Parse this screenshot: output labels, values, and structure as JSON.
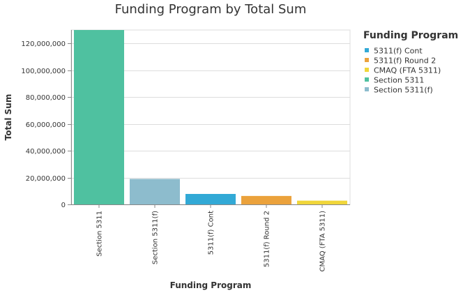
{
  "chart_data": {
    "type": "bar",
    "title": "Funding Program by Total Sum",
    "xlabel": "Funding Program",
    "ylabel": "Total Sum",
    "categories": [
      "Section 5311",
      "Section 5311(f)",
      "5311(f) Cont",
      "5311(f) Round 2",
      "CMAQ (FTA 5311)"
    ],
    "values": [
      130000000,
      19000000,
      7800000,
      6300000,
      2800000
    ],
    "colors": [
      "#4fc1a0",
      "#8dbccd",
      "#32a9d6",
      "#eba23c",
      "#f0d63a"
    ],
    "ylim": [
      0,
      130000000
    ],
    "yticks": [
      0,
      20000000,
      40000000,
      60000000,
      80000000,
      100000000,
      120000000
    ],
    "ytick_labels": [
      "0",
      "20,000,000",
      "40,000,000",
      "60,000,000",
      "80,000,000",
      "100,000,000",
      "120,000,000"
    ],
    "grid": true,
    "legend": {
      "title": "Funding Program",
      "position": "right",
      "entries": [
        {
          "label": "5311(f) Cont",
          "color": "#32a9d6"
        },
        {
          "label": "5311(f) Round 2",
          "color": "#eba23c"
        },
        {
          "label": "CMAQ (FTA 5311)",
          "color": "#f0d63a"
        },
        {
          "label": "Section 5311",
          "color": "#4fc1a0"
        },
        {
          "label": "Section 5311(f)",
          "color": "#8dbccd"
        }
      ]
    }
  }
}
